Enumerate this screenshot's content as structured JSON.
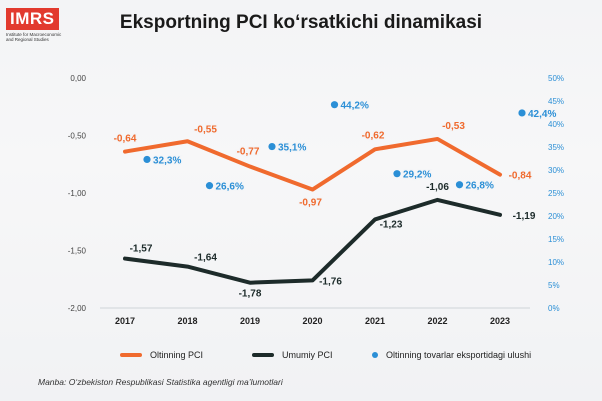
{
  "logo": {
    "text": "IMRS",
    "subtitle": "Institute for Macroeconomic\nand Regional Studies"
  },
  "title": "Eksportning PCI ko‘rsatkichi dinamikasi",
  "chart_data": {
    "type": "line",
    "categories": [
      "2017",
      "2018",
      "2019",
      "2020",
      "2021",
      "2022",
      "2023"
    ],
    "y_left": {
      "ylim": [
        -2.0,
        0.0
      ],
      "ticks": [
        "0,00",
        "-0,50",
        "-1,00",
        "-1,50",
        "-2,00"
      ],
      "tick_values": [
        0,
        -0.5,
        -1.0,
        -1.5,
        -2.0
      ]
    },
    "y_right": {
      "ylim": [
        0,
        50
      ],
      "ticks": [
        "50%",
        "45%",
        "40%",
        "35%",
        "30%",
        "25%",
        "20%",
        "15%",
        "10%",
        "5%",
        "0%"
      ],
      "tick_values": [
        50,
        45,
        40,
        35,
        30,
        25,
        20,
        15,
        10,
        5,
        0
      ]
    },
    "series": [
      {
        "name": "Oltinning PCI",
        "kind": "line",
        "axis": "left",
        "color": "#f06a2e",
        "values": [
          -0.64,
          -0.55,
          -0.77,
          -0.97,
          -0.62,
          -0.53,
          -0.84
        ],
        "labels": [
          "-0,64",
          "-0,55",
          "-0,77",
          "-0,97",
          "-0,62",
          "-0,53",
          "-0,84"
        ]
      },
      {
        "name": "Umumiy PCI",
        "kind": "line",
        "axis": "left",
        "color": "#1d2b2a",
        "values": [
          -1.57,
          -1.64,
          -1.78,
          -1.76,
          -1.23,
          -1.06,
          -1.19
        ],
        "labels": [
          "-1,57",
          "-1,64",
          "-1,78",
          "-1,76",
          "-1,23",
          "-1,06",
          "-1,19"
        ]
      },
      {
        "name": "Oltinning tovarlar eksportidagi ulushi",
        "kind": "scatter",
        "axis": "right",
        "color": "#2b8fd6",
        "values": [
          32.3,
          26.6,
          35.1,
          44.2,
          29.2,
          26.8,
          42.4
        ],
        "labels": [
          "32,3%",
          "26,6%",
          "35,1%",
          "44,2%",
          "29,2%",
          "26,8%",
          "42,4%"
        ]
      }
    ]
  },
  "source": "Manba: O‘zbekiston Respublikasi Statistika agentligi ma’lumotlari"
}
